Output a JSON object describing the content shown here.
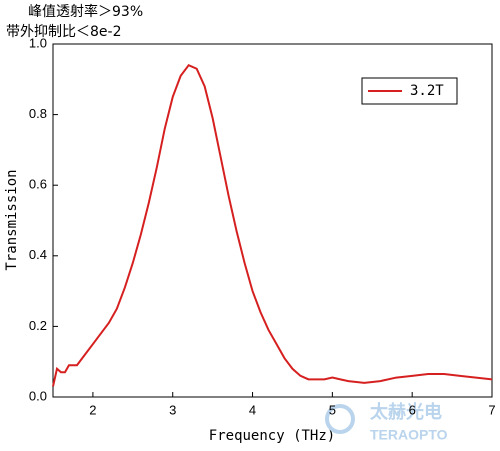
{
  "chart_data": {
    "type": "line",
    "annotations": [
      "峰值透射率＞93%",
      "带外抑制比＜8e-2"
    ],
    "xlabel": "Frequency (THz)",
    "ylabel": "Transmission",
    "x": [
      1.5,
      1.55,
      1.6,
      1.65,
      1.7,
      1.8,
      1.9,
      2.0,
      2.1,
      2.2,
      2.3,
      2.4,
      2.5,
      2.6,
      2.7,
      2.8,
      2.9,
      3.0,
      3.1,
      3.2,
      3.3,
      3.4,
      3.5,
      3.6,
      3.7,
      3.8,
      3.9,
      4.0,
      4.1,
      4.2,
      4.3,
      4.4,
      4.5,
      4.6,
      4.7,
      4.8,
      4.9,
      5.0,
      5.1,
      5.2,
      5.4,
      5.6,
      5.8,
      6.0,
      6.2,
      6.4,
      6.6,
      6.8,
      7.0
    ],
    "series": [
      {
        "name": "3.2T",
        "color": "#d62020",
        "values": [
          0.03,
          0.08,
          0.07,
          0.07,
          0.09,
          0.09,
          0.12,
          0.15,
          0.18,
          0.21,
          0.25,
          0.31,
          0.38,
          0.46,
          0.55,
          0.65,
          0.76,
          0.85,
          0.91,
          0.94,
          0.93,
          0.88,
          0.79,
          0.68,
          0.57,
          0.47,
          0.38,
          0.3,
          0.24,
          0.19,
          0.15,
          0.11,
          0.08,
          0.06,
          0.05,
          0.05,
          0.05,
          0.055,
          0.05,
          0.045,
          0.04,
          0.045,
          0.055,
          0.06,
          0.065,
          0.065,
          0.06,
          0.055,
          0.05
        ]
      }
    ],
    "xlim": [
      1.5,
      7
    ],
    "ylim": [
      0,
      1
    ],
    "xticks": [
      2,
      3,
      4,
      5,
      6,
      7
    ],
    "yticks": [
      {
        "value": 0,
        "label": "0.0"
      },
      0.2,
      0.4,
      0.6,
      0.8,
      {
        "value": 1,
        "label": "1.0"
      }
    ],
    "legend": "top-right",
    "watermark": {
      "brand": "太赫光电",
      "brand_latin": "TERAOPTO"
    }
  }
}
